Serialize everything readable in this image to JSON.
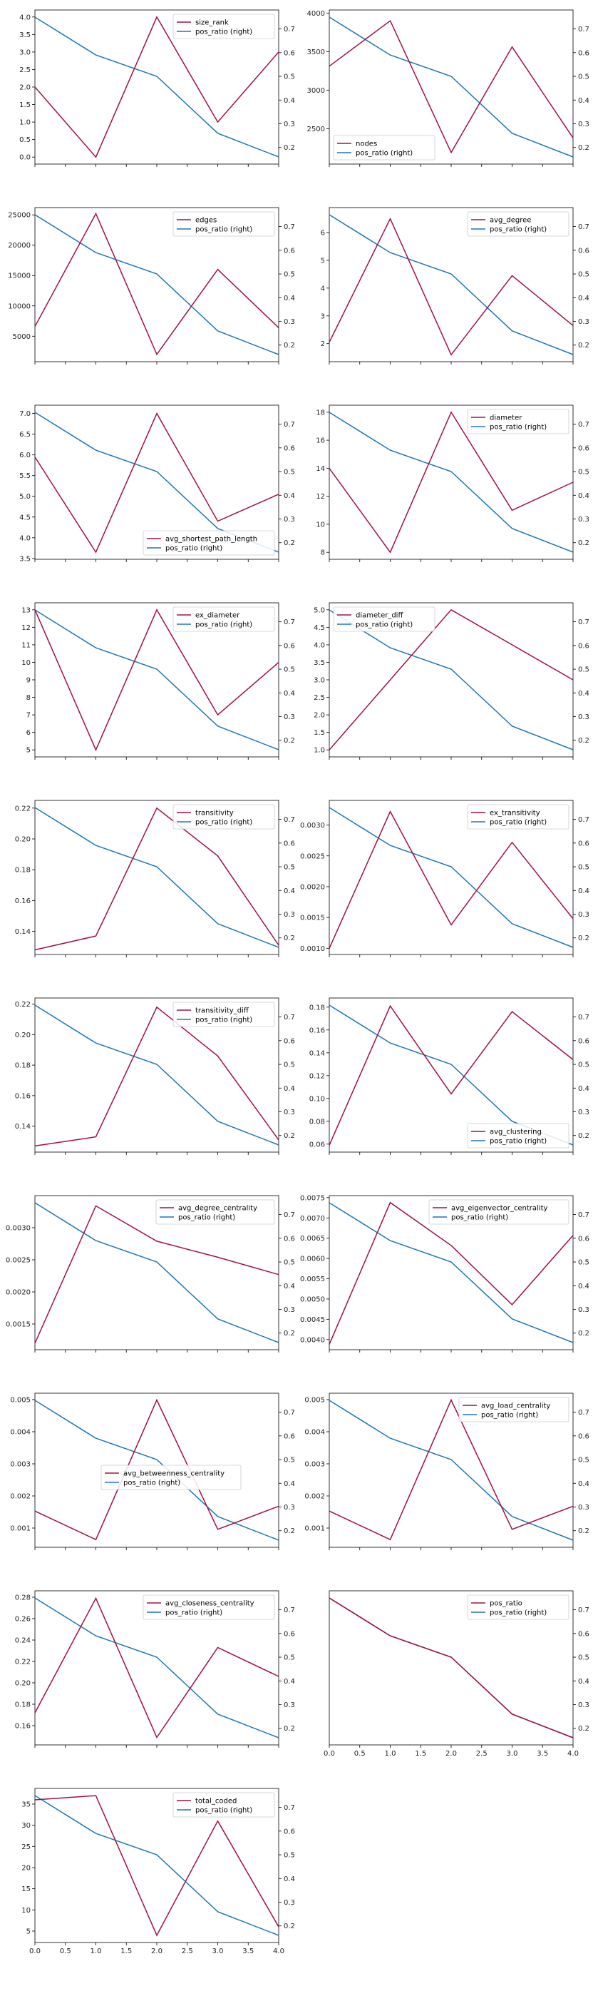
{
  "colors": {
    "primary": "#a01048",
    "secondary": "#1f77b4"
  },
  "secondary_name": "pos_ratio (right)",
  "secondary_ticks": [
    "0.2",
    "0.3",
    "0.4",
    "0.5",
    "0.6",
    "0.7"
  ],
  "x_ticks": [
    "0.0",
    "0.5",
    "1.0",
    "1.5",
    "2.0",
    "2.5",
    "3.0",
    "3.5",
    "4.0"
  ],
  "chart_data": [
    {
      "type": "line",
      "x": [
        0,
        1,
        2,
        3,
        4
      ],
      "ylim": [
        -0.2,
        4.2
      ],
      "legend": "top-right",
      "series": [
        {
          "name": "size_rank",
          "axis": "left",
          "values": [
            2,
            0,
            4,
            1,
            3
          ]
        },
        {
          "name": "pos_ratio (right)",
          "axis": "right",
          "values": [
            0.75,
            0.59,
            0.5,
            0.26,
            0.16
          ]
        }
      ],
      "y_ticks": [
        "0.0",
        "0.5",
        "1.0",
        "1.5",
        "2.0",
        "2.5",
        "3.0",
        "3.5",
        "4.0"
      ],
      "y_tick_values": [
        0,
        0.5,
        1,
        1.5,
        2,
        2.5,
        3,
        3.5,
        4
      ]
    },
    {
      "type": "line",
      "x": [
        0,
        1,
        2,
        3,
        4
      ],
      "ylim": [
        2040,
        4040
      ],
      "legend": "bottom-left",
      "series": [
        {
          "name": "nodes",
          "axis": "left",
          "values": [
            3310,
            3900,
            2190,
            3560,
            2380
          ]
        },
        {
          "name": "pos_ratio (right)",
          "axis": "right",
          "values": [
            0.75,
            0.59,
            0.5,
            0.26,
            0.16
          ]
        }
      ],
      "y_ticks": [
        "2500",
        "3000",
        "3500",
        "4000"
      ],
      "y_tick_values": [
        2500,
        3000,
        3500,
        4000
      ]
    },
    {
      "type": "line",
      "x": [
        0,
        1,
        2,
        3,
        4
      ],
      "ylim": [
        800,
        26200
      ],
      "legend": "top-right",
      "series": [
        {
          "name": "edges",
          "axis": "left",
          "values": [
            6600,
            25200,
            2000,
            16000,
            6400
          ]
        },
        {
          "name": "pos_ratio (right)",
          "axis": "right",
          "values": [
            0.75,
            0.59,
            0.5,
            0.26,
            0.16
          ]
        }
      ],
      "y_ticks": [
        "5000",
        "10000",
        "15000",
        "20000",
        "25000"
      ],
      "y_tick_values": [
        5000,
        10000,
        15000,
        20000,
        25000
      ]
    },
    {
      "type": "line",
      "x": [
        0,
        1,
        2,
        3,
        4
      ],
      "ylim": [
        1.35,
        6.9
      ],
      "legend": "top-right",
      "series": [
        {
          "name": "avg_degree",
          "axis": "left",
          "values": [
            2.05,
            6.5,
            1.6,
            4.45,
            2.65
          ]
        },
        {
          "name": "pos_ratio (right)",
          "axis": "right",
          "values": [
            0.75,
            0.59,
            0.5,
            0.26,
            0.16
          ]
        }
      ],
      "y_ticks": [
        "2",
        "3",
        "4",
        "5",
        "6"
      ],
      "y_tick_values": [
        2,
        3,
        4,
        5,
        6
      ]
    },
    {
      "type": "line",
      "x": [
        0,
        1,
        2,
        3,
        4
      ],
      "ylim": [
        3.48,
        7.2
      ],
      "legend": "bottom-right",
      "series": [
        {
          "name": "avg_shortest_path_length",
          "axis": "left",
          "values": [
            5.95,
            3.65,
            7,
            4.4,
            5.05
          ]
        },
        {
          "name": "pos_ratio (right)",
          "axis": "right",
          "values": [
            0.75,
            0.59,
            0.5,
            0.26,
            0.16
          ]
        }
      ],
      "y_ticks": [
        "3.5",
        "4.0",
        "4.5",
        "5.0",
        "5.5",
        "6.0",
        "6.5",
        "7.0"
      ],
      "y_tick_values": [
        3.5,
        4,
        4.5,
        5,
        5.5,
        6,
        6.5,
        7
      ]
    },
    {
      "type": "line",
      "x": [
        0,
        1,
        2,
        3,
        4
      ],
      "ylim": [
        7.5,
        18.5
      ],
      "legend": "top-right",
      "series": [
        {
          "name": "diameter",
          "axis": "left",
          "values": [
            14,
            8,
            18,
            11,
            13
          ]
        },
        {
          "name": "pos_ratio (right)",
          "axis": "right",
          "values": [
            0.75,
            0.59,
            0.5,
            0.26,
            0.16
          ]
        }
      ],
      "y_ticks": [
        "8",
        "10",
        "12",
        "14",
        "16",
        "18"
      ],
      "y_tick_values": [
        8,
        10,
        12,
        14,
        16,
        18
      ]
    },
    {
      "type": "line",
      "x": [
        0,
        1,
        2,
        3,
        4
      ],
      "ylim": [
        4.6,
        13.4
      ],
      "legend": "top-right",
      "series": [
        {
          "name": "ex_diameter",
          "axis": "left",
          "values": [
            13,
            5,
            13,
            7,
            10
          ]
        },
        {
          "name": "pos_ratio (right)",
          "axis": "right",
          "values": [
            0.75,
            0.59,
            0.5,
            0.26,
            0.16
          ]
        }
      ],
      "y_ticks": [
        "5",
        "6",
        "7",
        "8",
        "9",
        "10",
        "11",
        "12",
        "13"
      ],
      "y_tick_values": [
        5,
        6,
        7,
        8,
        9,
        10,
        11,
        12,
        13
      ]
    },
    {
      "type": "line",
      "x": [
        0,
        1,
        2,
        3,
        4
      ],
      "ylim": [
        0.8,
        5.2
      ],
      "legend": "top-left",
      "series": [
        {
          "name": "diameter_diff",
          "axis": "left",
          "values": [
            1,
            3,
            5,
            4,
            3
          ]
        },
        {
          "name": "pos_ratio (right)",
          "axis": "right",
          "values": [
            0.75,
            0.59,
            0.5,
            0.26,
            0.16
          ]
        }
      ],
      "y_ticks": [
        "1.0",
        "1.5",
        "2.0",
        "2.5",
        "3.0",
        "3.5",
        "4.0",
        "4.5",
        "5.0"
      ],
      "y_tick_values": [
        1,
        1.5,
        2,
        2.5,
        3,
        3.5,
        4,
        4.5,
        5
      ]
    },
    {
      "type": "line",
      "x": [
        0,
        1,
        2,
        3,
        4
      ],
      "ylim": [
        0.125,
        0.225
      ],
      "legend": "top-right",
      "series": [
        {
          "name": "transitivity",
          "axis": "left",
          "values": [
            0.128,
            0.137,
            0.22,
            0.189,
            0.131
          ]
        },
        {
          "name": "pos_ratio (right)",
          "axis": "right",
          "values": [
            0.75,
            0.59,
            0.5,
            0.26,
            0.16
          ]
        }
      ],
      "y_ticks": [
        "0.14",
        "0.16",
        "0.18",
        "0.20",
        "0.22"
      ],
      "y_tick_values": [
        0.14,
        0.16,
        0.18,
        0.2,
        0.22
      ]
    },
    {
      "type": "line",
      "x": [
        0,
        1,
        2,
        3,
        4
      ],
      "ylim": [
        0.0009,
        0.0034
      ],
      "legend": "top-right",
      "series": [
        {
          "name": "ex_transitivity",
          "axis": "left",
          "values": [
            0.001,
            0.00322,
            0.00138,
            0.00272,
            0.00148
          ]
        },
        {
          "name": "pos_ratio (right)",
          "axis": "right",
          "values": [
            0.75,
            0.59,
            0.5,
            0.26,
            0.16
          ]
        }
      ],
      "y_ticks": [
        "0.0010",
        "0.0015",
        "0.0020",
        "0.0025",
        "0.0030"
      ],
      "y_tick_values": [
        0.001,
        0.0015,
        0.002,
        0.0025,
        0.003
      ]
    },
    {
      "type": "line",
      "x": [
        0,
        1,
        2,
        3,
        4
      ],
      "ylim": [
        0.123,
        0.224
      ],
      "legend": "top-right",
      "series": [
        {
          "name": "transitivity_diff",
          "axis": "left",
          "values": [
            0.127,
            0.133,
            0.218,
            0.186,
            0.131
          ]
        },
        {
          "name": "pos_ratio (right)",
          "axis": "right",
          "values": [
            0.75,
            0.59,
            0.5,
            0.26,
            0.16
          ]
        }
      ],
      "y_ticks": [
        "0.14",
        "0.16",
        "0.18",
        "0.20",
        "0.22"
      ],
      "y_tick_values": [
        0.14,
        0.16,
        0.18,
        0.2,
        0.22
      ]
    },
    {
      "type": "line",
      "x": [
        0,
        1,
        2,
        3,
        4
      ],
      "ylim": [
        0.053,
        0.188
      ],
      "legend": "bottom-right",
      "series": [
        {
          "name": "avg_clustering",
          "axis": "left",
          "values": [
            0.059,
            0.181,
            0.104,
            0.176,
            0.134
          ]
        },
        {
          "name": "pos_ratio (right)",
          "axis": "right",
          "values": [
            0.75,
            0.59,
            0.5,
            0.26,
            0.16
          ]
        }
      ],
      "y_ticks": [
        "0.06",
        "0.08",
        "0.10",
        "0.12",
        "0.14",
        "0.16",
        "0.18"
      ],
      "y_tick_values": [
        0.06,
        0.08,
        0.1,
        0.12,
        0.14,
        0.16,
        0.18
      ]
    },
    {
      "type": "line",
      "x": [
        0,
        1,
        2,
        3,
        4
      ],
      "ylim": [
        0.0011,
        0.0035
      ],
      "legend": "top-right",
      "series": [
        {
          "name": "avg_degree_centrality",
          "axis": "left",
          "values": [
            0.0012,
            0.00334,
            0.00279,
            0.00254,
            0.00227
          ]
        },
        {
          "name": "pos_ratio (right)",
          "axis": "right",
          "values": [
            0.75,
            0.59,
            0.5,
            0.26,
            0.16
          ]
        }
      ],
      "y_ticks": [
        "0.0015",
        "0.0020",
        "0.0025",
        "0.0030"
      ],
      "y_tick_values": [
        0.0015,
        0.002,
        0.0025,
        0.003
      ]
    },
    {
      "type": "line",
      "x": [
        0,
        1,
        2,
        3,
        4
      ],
      "ylim": [
        0.00375,
        0.00755
      ],
      "legend": "top-right",
      "series": [
        {
          "name": "avg_eigenvector_centrality",
          "axis": "left",
          "values": [
            0.00388,
            0.00738,
            0.00632,
            0.00486,
            0.00657
          ]
        },
        {
          "name": "pos_ratio (right)",
          "axis": "right",
          "values": [
            0.75,
            0.59,
            0.5,
            0.26,
            0.16
          ]
        }
      ],
      "y_ticks": [
        "0.0040",
        "0.0045",
        "0.0050",
        "0.0055",
        "0.0060",
        "0.0065",
        "0.0070",
        "0.0075"
      ],
      "y_tick_values": [
        0.004,
        0.0045,
        0.005,
        0.0055,
        0.006,
        0.0065,
        0.007,
        0.0075
      ]
    },
    {
      "type": "line",
      "x": [
        0,
        1,
        2,
        3,
        4
      ],
      "ylim": [
        0.0004,
        0.0052
      ],
      "legend": "center",
      "series": [
        {
          "name": "avg_betweenness_centrality",
          "axis": "left",
          "values": [
            0.00153,
            0.00064,
            0.00499,
            0.00096,
            0.00168
          ]
        },
        {
          "name": "pos_ratio (right)",
          "axis": "right",
          "values": [
            0.75,
            0.59,
            0.5,
            0.26,
            0.16
          ]
        }
      ],
      "y_ticks": [
        "0.001",
        "0.002",
        "0.003",
        "0.004",
        "0.005"
      ],
      "y_tick_values": [
        0.001,
        0.002,
        0.003,
        0.004,
        0.005
      ]
    },
    {
      "type": "line",
      "x": [
        0,
        1,
        2,
        3,
        4
      ],
      "ylim": [
        0.0004,
        0.0052
      ],
      "legend": "top-right",
      "series": [
        {
          "name": "avg_load_centrality",
          "axis": "left",
          "values": [
            0.00153,
            0.00064,
            0.00499,
            0.00096,
            0.00168
          ]
        },
        {
          "name": "pos_ratio (right)",
          "axis": "right",
          "values": [
            0.75,
            0.59,
            0.5,
            0.26,
            0.16
          ]
        }
      ],
      "y_ticks": [
        "0.001",
        "0.002",
        "0.003",
        "0.004",
        "0.005"
      ],
      "y_tick_values": [
        0.001,
        0.002,
        0.003,
        0.004,
        0.005
      ]
    },
    {
      "type": "line",
      "x": [
        0,
        1,
        2,
        3,
        4
      ],
      "ylim": [
        0.142,
        0.286
      ],
      "legend": "top-right",
      "series": [
        {
          "name": "avg_closeness_centrality",
          "axis": "left",
          "values": [
            0.172,
            0.279,
            0.149,
            0.233,
            0.206
          ]
        },
        {
          "name": "pos_ratio (right)",
          "axis": "right",
          "values": [
            0.75,
            0.59,
            0.5,
            0.26,
            0.16
          ]
        }
      ],
      "y_ticks": [
        "0.16",
        "0.18",
        "0.20",
        "0.22",
        "0.24",
        "0.26",
        "0.28"
      ],
      "y_tick_values": [
        0.16,
        0.18,
        0.2,
        0.22,
        0.24,
        0.26,
        0.28
      ]
    },
    {
      "type": "line",
      "x": [
        0,
        1,
        2,
        3,
        4
      ],
      "ylim": [
        0.13,
        0.78
      ],
      "legend": "top-right",
      "show_x_ticks": true,
      "series": [
        {
          "name": "pos_ratio",
          "axis": "left",
          "values": [
            0.75,
            0.59,
            0.5,
            0.26,
            0.16
          ]
        },
        {
          "name": "pos_ratio (right)",
          "axis": "right",
          "values": [
            0.75,
            0.59,
            0.5,
            0.26,
            0.16
          ]
        }
      ],
      "y_ticks": [],
      "y_tick_values": []
    },
    {
      "type": "line",
      "x": [
        0,
        1,
        2,
        3,
        4
      ],
      "ylim": [
        2.3,
        38.7
      ],
      "legend": "top-right",
      "show_x_ticks": true,
      "series": [
        {
          "name": "total_coded",
          "axis": "left",
          "values": [
            36,
            37,
            4,
            31,
            6
          ]
        },
        {
          "name": "pos_ratio (right)",
          "axis": "right",
          "values": [
            0.75,
            0.59,
            0.5,
            0.26,
            0.16
          ]
        }
      ],
      "y_ticks": [
        "5",
        "10",
        "15",
        "20",
        "25",
        "30",
        "35"
      ],
      "y_tick_values": [
        5,
        10,
        15,
        20,
        25,
        30,
        35
      ]
    }
  ]
}
